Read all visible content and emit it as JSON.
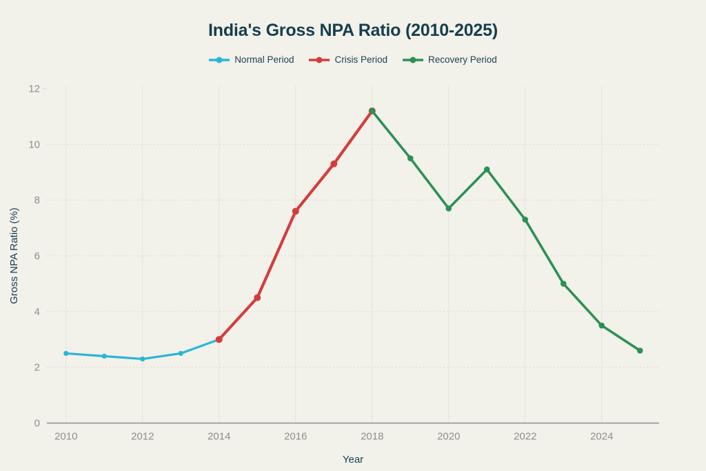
{
  "header": {
    "title": "India's Gross NPA Ratio (2010-2025)",
    "title_color": "#163e4d"
  },
  "chart_data": {
    "type": "line",
    "title": "India's Gross NPA Ratio (2010-2025)",
    "xlabel": "Year",
    "ylabel": "Gross NPA Ratio (%)",
    "xlim": [
      2009.5,
      2025.5
    ],
    "ylim": [
      0,
      12
    ],
    "x_ticks": [
      2010,
      2012,
      2014,
      2016,
      2018,
      2020,
      2022,
      2024
    ],
    "y_ticks": [
      0,
      2,
      4,
      6,
      8,
      10,
      12
    ],
    "grid": true,
    "legend_position": "top",
    "series": [
      {
        "name": "Normal Period",
        "color": "#29b5d8",
        "x": [
          2010,
          2011,
          2012,
          2013,
          2014
        ],
        "values": [
          2.5,
          2.4,
          2.3,
          2.5,
          3.0
        ],
        "line_width": 3.2,
        "marker_radius": 3.6
      },
      {
        "name": "Crisis Period",
        "color": "#d43c3c",
        "x": [
          2014,
          2015,
          2016,
          2017,
          2018
        ],
        "values": [
          3.0,
          4.5,
          7.6,
          9.3,
          11.2
        ],
        "line_width": 4.2,
        "marker_radius": 5
      },
      {
        "name": "Recovery Period",
        "color": "#2b9153",
        "x": [
          2018,
          2019,
          2020,
          2021,
          2022,
          2023,
          2024,
          2025
        ],
        "values": [
          11.2,
          9.5,
          7.7,
          9.1,
          7.3,
          5.0,
          3.5,
          2.6
        ],
        "line_width": 3.6,
        "marker_radius": 4.3
      }
    ],
    "style": {
      "background_color": "#f2f1ea",
      "axis_color": "#8e8d89",
      "tick_label_color": "#8f8e8a",
      "hgrid_color": "#dcdbd1",
      "vgrid_color": "#e3e2d9",
      "axis_title_color": "#163e4d",
      "legend_text_color": "#1c4252"
    }
  }
}
